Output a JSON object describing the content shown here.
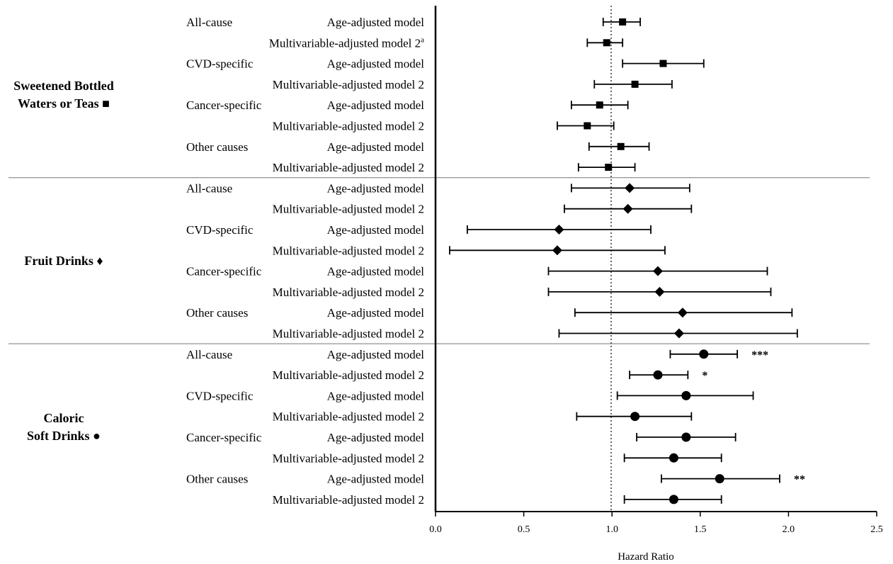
{
  "chart_data": {
    "type": "forest",
    "title": "",
    "xlabel": "Hazard Ratio",
    "ylabel": "",
    "xlim": [
      0,
      2.5
    ],
    "xticks": [
      "0.0",
      "0.5",
      "1.0",
      "1.5",
      "2.0",
      "2.5"
    ],
    "reference_line": 1.0,
    "footnote_mark": "a",
    "groups": [
      {
        "label_lines": [
          "Sweetened Bottled",
          "Waters or Teas ■"
        ],
        "marker": "square",
        "rows": [
          {
            "outcome": "All-cause",
            "model": "Age-adjusted model",
            "hr": 1.06,
            "lo": 0.95,
            "hi": 1.16,
            "sig": ""
          },
          {
            "outcome": "",
            "model": "Multivariable-adjusted model 2",
            "hr": 0.97,
            "lo": 0.86,
            "hi": 1.06,
            "sig": "",
            "footnote": true
          },
          {
            "outcome": "CVD-specific",
            "model": "Age-adjusted model",
            "hr": 1.29,
            "lo": 1.06,
            "hi": 1.52,
            "sig": ""
          },
          {
            "outcome": "",
            "model": "Multivariable-adjusted model 2",
            "hr": 1.13,
            "lo": 0.9,
            "hi": 1.34,
            "sig": ""
          },
          {
            "outcome": "Cancer-specific",
            "model": "Age-adjusted model",
            "hr": 0.93,
            "lo": 0.77,
            "hi": 1.09,
            "sig": ""
          },
          {
            "outcome": "",
            "model": "Multivariable-adjusted model 2",
            "hr": 0.86,
            "lo": 0.69,
            "hi": 1.01,
            "sig": ""
          },
          {
            "outcome": "Other causes",
            "model": "Age-adjusted model",
            "hr": 1.05,
            "lo": 0.87,
            "hi": 1.21,
            "sig": ""
          },
          {
            "outcome": "",
            "model": "Multivariable-adjusted model 2",
            "hr": 0.98,
            "lo": 0.81,
            "hi": 1.13,
            "sig": ""
          }
        ]
      },
      {
        "label_lines": [
          "Fruit Drinks ♦"
        ],
        "marker": "diamond",
        "rows": [
          {
            "outcome": "All-cause",
            "model": "Age-adjusted model",
            "hr": 1.1,
            "lo": 0.77,
            "hi": 1.44,
            "sig": ""
          },
          {
            "outcome": "",
            "model": "Multivariable-adjusted model 2",
            "hr": 1.09,
            "lo": 0.73,
            "hi": 1.45,
            "sig": ""
          },
          {
            "outcome": "CVD-specific",
            "model": "Age-adjusted model",
            "hr": 0.7,
            "lo": 0.18,
            "hi": 1.22,
            "sig": ""
          },
          {
            "outcome": "",
            "model": "Multivariable-adjusted model 2",
            "hr": 0.69,
            "lo": 0.08,
            "hi": 1.3,
            "sig": ""
          },
          {
            "outcome": "Cancer-specific",
            "model": "Age-adjusted model",
            "hr": 1.26,
            "lo": 0.64,
            "hi": 1.88,
            "sig": ""
          },
          {
            "outcome": "",
            "model": "Multivariable-adjusted model 2",
            "hr": 1.27,
            "lo": 0.64,
            "hi": 1.9,
            "sig": ""
          },
          {
            "outcome": "Other causes",
            "model": "Age-adjusted model",
            "hr": 1.4,
            "lo": 0.79,
            "hi": 2.02,
            "sig": ""
          },
          {
            "outcome": "",
            "model": "Multivariable-adjusted model 2",
            "hr": 1.38,
            "lo": 0.7,
            "hi": 2.05,
            "sig": ""
          }
        ]
      },
      {
        "label_lines": [
          "Caloric",
          "Soft Drinks ●"
        ],
        "marker": "circle",
        "rows": [
          {
            "outcome": "All-cause",
            "model": "Age-adjusted model",
            "hr": 1.52,
            "lo": 1.33,
            "hi": 1.71,
            "sig": "***"
          },
          {
            "outcome": "",
            "model": "Multivariable-adjusted model 2",
            "hr": 1.26,
            "lo": 1.1,
            "hi": 1.43,
            "sig": "*"
          },
          {
            "outcome": "CVD-specific",
            "model": "Age-adjusted model",
            "hr": 1.42,
            "lo": 1.03,
            "hi": 1.8,
            "sig": ""
          },
          {
            "outcome": "",
            "model": "Multivariable-adjusted model 2",
            "hr": 1.13,
            "lo": 0.8,
            "hi": 1.45,
            "sig": ""
          },
          {
            "outcome": "Cancer-specific",
            "model": "Age-adjusted model",
            "hr": 1.42,
            "lo": 1.14,
            "hi": 1.7,
            "sig": ""
          },
          {
            "outcome": "",
            "model": "Multivariable-adjusted model 2",
            "hr": 1.35,
            "lo": 1.07,
            "hi": 1.62,
            "sig": ""
          },
          {
            "outcome": "Other causes",
            "model": "Age-adjusted model",
            "hr": 1.61,
            "lo": 1.28,
            "hi": 1.95,
            "sig": "**"
          },
          {
            "outcome": "",
            "model": "Multivariable-adjusted model 2",
            "hr": 1.35,
            "lo": 1.07,
            "hi": 1.62,
            "sig": ""
          }
        ]
      }
    ]
  }
}
